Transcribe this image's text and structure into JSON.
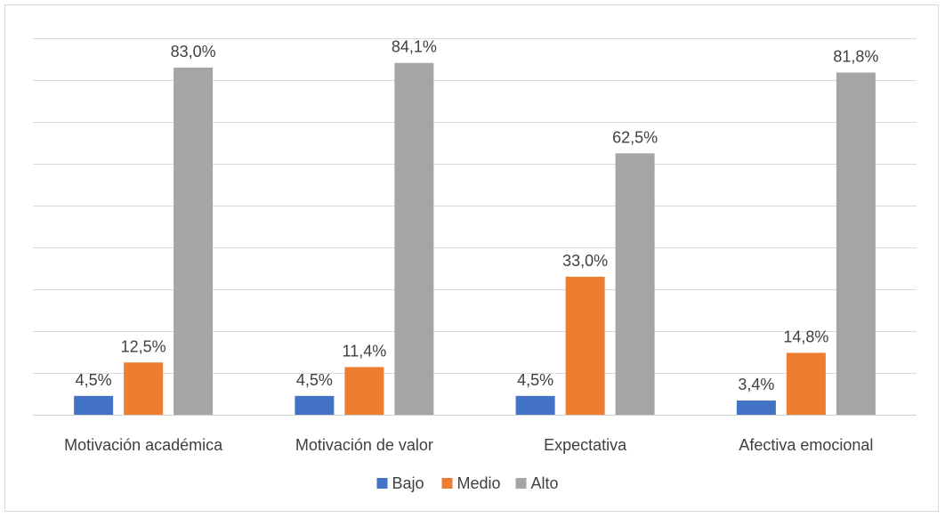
{
  "chart_data": {
    "type": "bar",
    "title": "",
    "xlabel": "",
    "ylabel": "",
    "ylim": [
      0,
      90
    ],
    "grid": true,
    "legend_position": "bottom",
    "categories": [
      "Motivación académica",
      "Motivación de valor",
      "Expectativa",
      "Afectiva emocional"
    ],
    "series": [
      {
        "name": "Bajo",
        "color": "#4472c4",
        "values": [
          4.5,
          4.5,
          4.5,
          3.4
        ],
        "labels": [
          "4,5%",
          "4,5%",
          "4,5%",
          "3,4%"
        ]
      },
      {
        "name": "Medio",
        "color": "#ed7d31",
        "values": [
          12.5,
          11.4,
          33.0,
          14.8
        ],
        "labels": [
          "12,5%",
          "11,4%",
          "33,0%",
          "14,8%"
        ]
      },
      {
        "name": "Alto",
        "color": "#a5a5a5",
        "values": [
          83.0,
          84.1,
          62.5,
          81.8
        ],
        "labels": [
          "83,0%",
          "84,1%",
          "62,5%",
          "81,8%"
        ]
      }
    ]
  }
}
